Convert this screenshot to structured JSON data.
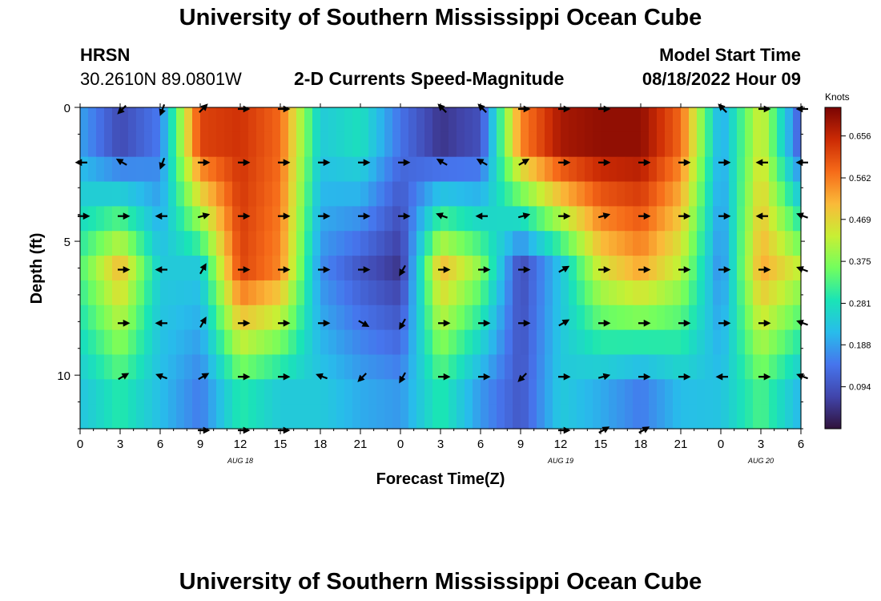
{
  "title": "University of Southern Mississippi Ocean Cube",
  "footer_title": "University of Southern Mississippi Ocean Cube",
  "station": {
    "name": "HRSN",
    "coords": "30.2610N  89.0801W"
  },
  "subtitle": "2-D Currents Speed-Magnitude",
  "model_start": {
    "label": "Model Start Time",
    "value": "08/18/2022 Hour 09"
  },
  "chart_data": {
    "type": "heatmap",
    "title": "2-D Currents Speed-Magnitude",
    "xlabel": "Forecast Time(Z)",
    "ylabel": "Depth (ft)",
    "xlim": [
      0,
      54
    ],
    "ylim": [
      12,
      0
    ],
    "x_tick_values": [
      0,
      3,
      6,
      9,
      12,
      15,
      18,
      21,
      24,
      27,
      30,
      33,
      36,
      39,
      42,
      45,
      48,
      51,
      54
    ],
    "x_tick_labels": [
      "0",
      "3",
      "6",
      "9",
      "12",
      "15",
      "18",
      "21",
      "0",
      "3",
      "6",
      "9",
      "12",
      "15",
      "18",
      "21",
      "0",
      "3",
      "6"
    ],
    "y_tick_values": [
      0,
      5,
      10
    ],
    "y_tick_labels": [
      "0",
      "5",
      "10"
    ],
    "date_labels": [
      {
        "x": 12,
        "text": "AUG 18"
      },
      {
        "x": 36,
        "text": "AUG 19"
      },
      {
        "x": 51,
        "text": "AUG 20"
      }
    ],
    "colorbar": {
      "title": "Knots",
      "min": 0.0,
      "max": 0.72,
      "ticks": [
        0.094,
        0.188,
        0.281,
        0.375,
        0.469,
        0.562,
        0.656
      ],
      "tick_labels": [
        "0.094",
        "0.188",
        "0.281",
        "0.375",
        "0.469",
        "0.562",
        "0.656"
      ]
    },
    "depth_levels_ft": [
      0,
      1,
      2,
      3,
      4,
      5,
      6,
      7,
      8,
      9,
      10,
      11,
      12
    ],
    "series": [
      {
        "name": "speed_profile_shallow",
        "depth_ft": 1,
        "x": [
          0,
          3,
          6,
          9,
          12,
          15,
          18,
          21,
          24,
          27,
          30,
          33,
          36,
          39,
          42,
          45,
          48,
          51,
          54
        ],
        "values": [
          0.19,
          0.08,
          0.15,
          0.62,
          0.64,
          0.58,
          0.24,
          0.28,
          0.14,
          0.05,
          0.09,
          0.55,
          0.68,
          0.7,
          0.7,
          0.58,
          0.19,
          0.45,
          0.1
        ]
      },
      {
        "name": "speed_profile_mid",
        "depth_ft": 6,
        "x": [
          0,
          3,
          6,
          9,
          12,
          15,
          18,
          21,
          24,
          27,
          30,
          33,
          36,
          39,
          42,
          45,
          48,
          51,
          54
        ],
        "values": [
          0.33,
          0.5,
          0.24,
          0.24,
          0.62,
          0.55,
          0.17,
          0.1,
          0.05,
          0.5,
          0.38,
          0.08,
          0.23,
          0.45,
          0.52,
          0.42,
          0.16,
          0.52,
          0.42
        ]
      },
      {
        "name": "speed_profile_deep",
        "depth_ft": 11,
        "x": [
          0,
          3,
          6,
          9,
          12,
          15,
          18,
          21,
          24,
          27,
          30,
          33,
          36,
          39,
          42,
          45,
          48,
          51,
          54
        ],
        "values": [
          0.23,
          0.3,
          0.22,
          0.15,
          0.3,
          0.24,
          0.24,
          0.2,
          0.18,
          0.3,
          0.18,
          0.1,
          0.24,
          0.2,
          0.15,
          0.22,
          0.23,
          0.33,
          0.21
        ]
      }
    ],
    "vector_rows_ft": [
      0,
      2,
      4,
      6,
      8,
      10,
      12
    ],
    "vector_cols_hr": [
      0,
      3,
      6,
      9,
      12,
      15,
      18,
      21,
      24,
      27,
      30,
      33,
      36,
      39,
      42,
      45,
      48,
      51,
      54
    ],
    "vector_angles_deg": [
      [
        null,
        135,
        110,
        -45,
        0,
        0,
        null,
        null,
        null,
        -135,
        225,
        0,
        0,
        0,
        null,
        null,
        -135,
        0,
        180
      ],
      [
        180,
        -150,
        110,
        0,
        0,
        0,
        0,
        0,
        0,
        -150,
        -150,
        -30,
        0,
        0,
        0,
        0,
        0,
        180,
        180
      ],
      [
        0,
        0,
        180,
        -15,
        0,
        0,
        0,
        0,
        0,
        200,
        180,
        -15,
        0,
        -15,
        0,
        0,
        0,
        180,
        200
      ],
      [
        null,
        0,
        180,
        -60,
        0,
        0,
        0,
        0,
        120,
        0,
        0,
        0,
        -30,
        0,
        0,
        0,
        0,
        0,
        200
      ],
      [
        null,
        0,
        180,
        -60,
        0,
        0,
        0,
        30,
        120,
        0,
        0,
        0,
        -30,
        0,
        0,
        0,
        0,
        0,
        200
      ],
      [
        null,
        -30,
        200,
        -30,
        0,
        0,
        200,
        135,
        120,
        0,
        0,
        135,
        0,
        -15,
        0,
        0,
        180,
        0,
        200
      ],
      [
        null,
        null,
        null,
        0,
        0,
        0,
        null,
        null,
        null,
        null,
        null,
        null,
        0,
        -30,
        -30,
        null,
        null,
        null,
        null
      ]
    ]
  }
}
